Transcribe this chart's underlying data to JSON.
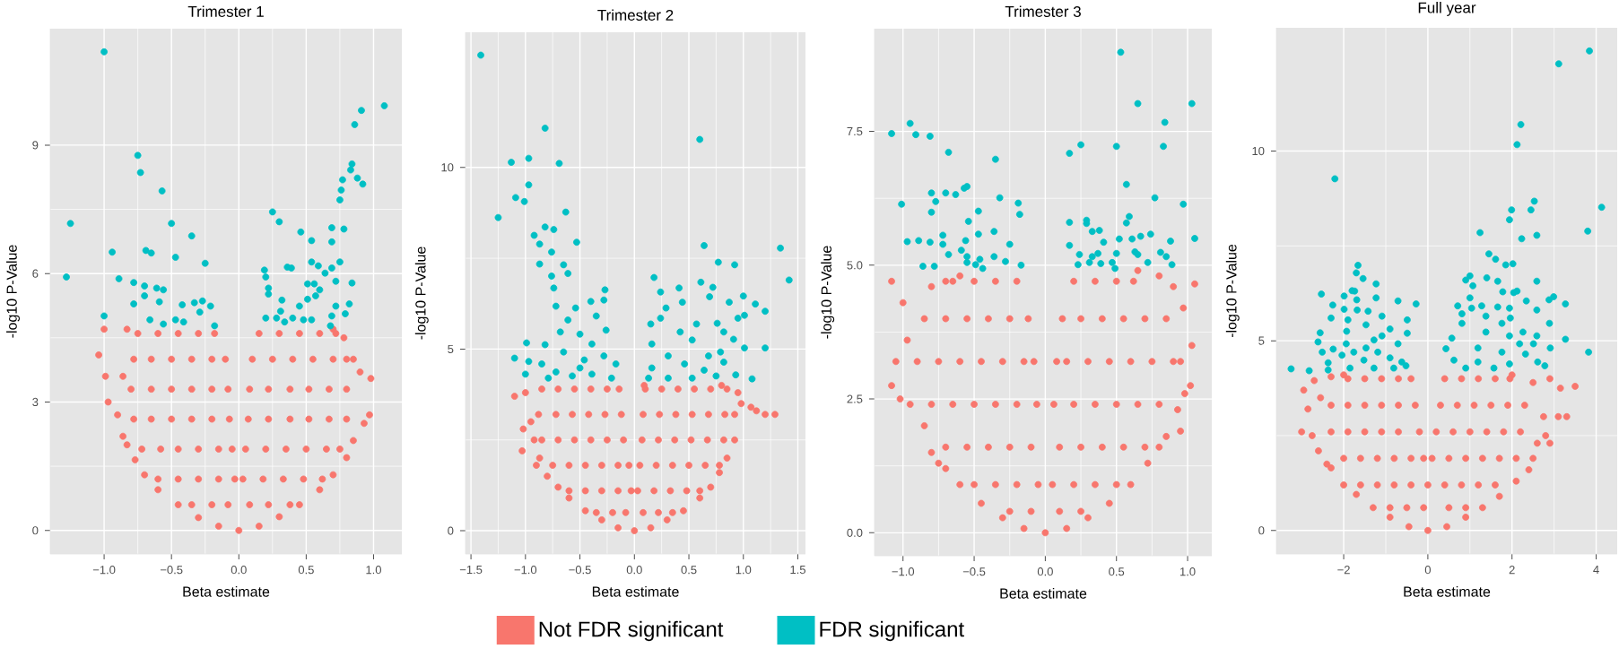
{
  "chart_data": [
    {
      "type": "scatter",
      "title": "Trimester 1",
      "xlabel": "Beta estimate",
      "ylabel": "-log10 P-Value",
      "xlim": [
        -1.4,
        1.21
      ],
      "ylim": [
        -0.55,
        11.72
      ],
      "xticks": [
        {
          "value": -1,
          "label": "−1.0"
        },
        {
          "value": -0.5,
          "label": "−0.5"
        },
        {
          "value": 0,
          "label": "0.0"
        },
        0.5,
        {
          "value": 1,
          "label": "1.0"
        }
      ],
      "yticks": [
        0,
        3,
        6,
        9
      ],
      "grid": true,
      "legend": "bottom",
      "series": [
        {
          "name": "Not FDR significant",
          "color": "#f8766d",
          "x": [
            -1.04,
            -1.0,
            -0.99,
            -0.97,
            -0.9,
            -0.86,
            -0.83,
            -0.86,
            -0.83,
            -0.77,
            -0.7,
            -0.6,
            -0.45,
            -0.3,
            -0.15,
            0,
            0.15,
            0.3,
            0.45,
            0.6,
            0.7,
            0.8,
            0.85,
            0.93,
            0.97,
            0.98,
            0.9,
            0.85,
            0.78,
            0.7,
            -0.75,
            -0.6,
            -0.45,
            -0.3,
            -0.18,
            -0.78,
            -0.65,
            -0.5,
            -0.35,
            -0.2,
            -0.1,
            -0.8,
            -0.65,
            -0.5,
            -0.35,
            -0.2,
            -0.08,
            -0.78,
            -0.65,
            -0.5,
            -0.35,
            -0.2,
            -0.07,
            -0.72,
            -0.58,
            -0.45,
            -0.3,
            -0.15,
            -0.05,
            -0.6,
            -0.45,
            -0.3,
            -0.15,
            -0.03,
            -0.35,
            -0.2,
            -0.08,
            0.15,
            0.3,
            0.45,
            0.6,
            0.72,
            0.1,
            0.25,
            0.4,
            0.55,
            0.7,
            0.8,
            0.08,
            0.22,
            0.38,
            0.52,
            0.67,
            0.8,
            0.07,
            0.22,
            0.38,
            0.52,
            0.67,
            0.8,
            0.05,
            0.2,
            0.35,
            0.5,
            0.65,
            0.75,
            0.03,
            0.18,
            0.33,
            0.48,
            0.62,
            0.08,
            0.22,
            0.38
          ],
          "values": [
            4.1,
            4.7,
            3.6,
            3.0,
            2.7,
            2.2,
            2.0,
            3.6,
            4.7,
            1.65,
            1.3,
            0.95,
            0.6,
            0.3,
            0.1,
            0,
            0.1,
            0.32,
            0.6,
            0.95,
            1.3,
            1.7,
            2.1,
            2.5,
            2.7,
            3.55,
            3.7,
            4.0,
            4.5,
            4.7,
            4.6,
            4.6,
            4.6,
            4.6,
            4.6,
            4.0,
            4.0,
            4.0,
            4.0,
            4.0,
            4.0,
            3.3,
            3.3,
            3.3,
            3.3,
            3.3,
            3.3,
            2.6,
            2.6,
            2.6,
            2.6,
            2.6,
            2.6,
            1.9,
            1.9,
            1.9,
            1.9,
            1.9,
            1.9,
            1.2,
            1.2,
            1.2,
            1.2,
            1.2,
            0.6,
            0.6,
            0.6,
            4.6,
            4.6,
            4.6,
            4.6,
            4.6,
            4.0,
            4.0,
            4.0,
            4.0,
            4.0,
            4.0,
            3.3,
            3.3,
            3.3,
            3.3,
            3.3,
            3.3,
            2.6,
            2.6,
            2.6,
            2.6,
            2.6,
            2.6,
            1.9,
            1.9,
            1.9,
            1.9,
            1.9,
            1.9,
            1.2,
            1.2,
            1.2,
            1.2,
            1.2,
            0.6,
            0.6,
            0.6
          ]
        },
        {
          "name": "FDR significant",
          "color": "#00bfc4",
          "x": [
            -1.0,
            -1.28,
            -1.25,
            -0.94,
            -0.89,
            -1.0,
            -0.75,
            -0.73,
            -0.57,
            -0.5,
            -0.35,
            -0.47,
            -0.25,
            -0.69,
            -0.65,
            -0.78,
            -0.7,
            -0.7,
            -0.61,
            -0.56,
            -0.59,
            -0.78,
            -0.66,
            -0.42,
            -0.33,
            -0.27,
            -0.21,
            -0.29,
            -0.47,
            -0.56,
            -0.18,
            -0.41,
            1.08,
            0.91,
            0.86,
            0.84,
            0.83,
            0.88,
            0.92,
            0.77,
            0.76,
            0.75,
            0.25,
            0.3,
            0.46,
            0.69,
            0.78,
            0.54,
            0.69,
            0.75,
            0.54,
            0.59,
            0.64,
            0.69,
            0.19,
            0.2,
            0.36,
            0.39,
            0.84,
            0.72,
            0.51,
            0.56,
            0.6,
            0.57,
            0.51,
            0.45,
            0.22,
            0.22,
            0.32,
            0.72,
            0.82,
            0.79,
            0.69,
            0.31,
            0.2,
            0.28,
            0.4,
            0.48,
            0.54,
            0.68,
            0.34
          ],
          "values": [
            11.18,
            5.92,
            7.17,
            6.5,
            5.88,
            5.01,
            8.76,
            8.36,
            7.93,
            7.17,
            6.88,
            6.38,
            6.24,
            6.54,
            6.48,
            5.79,
            5.71,
            5.48,
            5.66,
            5.62,
            5.34,
            5.29,
            4.92,
            5.27,
            5.32,
            5.36,
            5.24,
            5.1,
            4.92,
            4.82,
            4.78,
            4.87,
            9.92,
            9.81,
            9.48,
            8.56,
            8.42,
            8.23,
            8.09,
            8.19,
            7.95,
            7.72,
            7.44,
            7.21,
            6.97,
            7.07,
            7.04,
            6.77,
            6.74,
            6.27,
            6.27,
            6.18,
            6.01,
            6.13,
            6.08,
            5.92,
            6.15,
            6.13,
            5.78,
            5.82,
            5.76,
            5.76,
            5.62,
            5.48,
            5.4,
            5.24,
            5.66,
            5.52,
            5.38,
            5.24,
            5.29,
            5.06,
            5.01,
            5.12,
            4.96,
            4.96,
            4.96,
            4.92,
            4.92,
            4.78,
            4.87
          ]
        }
      ]
    },
    {
      "type": "scatter",
      "title": "Trimester 2",
      "xlabel": "Beta estimate",
      "ylabel": "-log10 P-Value",
      "xlim": [
        -1.55,
        1.57
      ],
      "ylim": [
        -0.64,
        13.72
      ],
      "xticks": [
        {
          "value": -1.5,
          "label": "−1.5"
        },
        {
          "value": -1,
          "label": "−1.0"
        },
        {
          "value": -0.5,
          "label": "−0.5"
        },
        {
          "value": 0,
          "label": "0.0"
        },
        0.5,
        {
          "value": 1,
          "label": "1.0"
        },
        1.5
      ],
      "yticks": [
        0,
        5,
        10
      ],
      "grid": true,
      "series": [
        {
          "color": "#f8766d",
          "x": [
            -1.1,
            -1.0,
            -1.02,
            -1.03,
            -0.95,
            -0.92,
            -0.9,
            -0.87,
            -0.8,
            -0.7,
            -0.6,
            -0.45,
            -0.3,
            -0.15,
            0,
            0.15,
            0.3,
            0.45,
            0.6,
            0.7,
            0.78,
            0.85,
            0.92,
            0.92,
            0.98,
            1.07,
            1.12,
            1.2,
            1.29,
            0.95,
            0.8,
            0.09,
            -0.85,
            -0.7,
            -0.55,
            -0.4,
            -0.25,
            -0.14,
            -0.88,
            -0.72,
            -0.57,
            -0.42,
            -0.27,
            -0.12,
            -0.85,
            -0.7,
            -0.55,
            -0.4,
            -0.25,
            -0.1,
            -0.75,
            -0.6,
            -0.45,
            -0.3,
            -0.15,
            -0.05,
            -0.6,
            -0.45,
            -0.3,
            -0.15,
            -0.03,
            -0.35,
            -0.2,
            -0.08,
            0.1,
            0.25,
            0.4,
            0.55,
            0.7,
            0.85,
            0.08,
            0.23,
            0.38,
            0.53,
            0.68,
            0.83,
            0.07,
            0.22,
            0.37,
            0.52,
            0.67,
            0.82,
            0.05,
            0.2,
            0.35,
            0.5,
            0.65,
            0.78,
            0.03,
            0.18,
            0.33,
            0.48,
            0.6,
            0.08,
            0.22,
            0.35
          ],
          "values": [
            3.7,
            3.8,
            2.8,
            2.2,
            3.0,
            2.5,
            1.8,
            2.0,
            1.5,
            1.2,
            0.9,
            0.55,
            0.3,
            0.08,
            0,
            0.08,
            0.3,
            0.55,
            0.9,
            1.2,
            1.6,
            2.0,
            2.5,
            3.2,
            3.5,
            3.4,
            3.3,
            3.2,
            3.2,
            3.8,
            4.0,
            4.0,
            3.9,
            3.9,
            3.9,
            3.9,
            3.9,
            3.9,
            3.2,
            3.2,
            3.2,
            3.2,
            3.2,
            3.2,
            2.5,
            2.5,
            2.5,
            2.5,
            2.5,
            2.5,
            1.8,
            1.8,
            1.8,
            1.8,
            1.8,
            1.8,
            1.1,
            1.1,
            1.1,
            1.1,
            1.1,
            0.5,
            0.5,
            0.5,
            3.9,
            3.9,
            3.9,
            3.9,
            3.9,
            3.9,
            3.2,
            3.2,
            3.2,
            3.2,
            3.2,
            3.2,
            2.5,
            2.5,
            2.5,
            2.5,
            2.5,
            2.5,
            1.8,
            1.8,
            1.8,
            1.8,
            1.8,
            1.8,
            1.1,
            1.1,
            1.1,
            1.1,
            1.1,
            0.5,
            0.5,
            0.5
          ]
        },
        {
          "color": "#00bfc4",
          "x": [
            -1.41,
            -1.25,
            -0.82,
            -1.13,
            -0.97,
            -0.69,
            -0.97,
            -1.09,
            -1.01,
            -0.63,
            -0.53,
            -0.82,
            -0.74,
            -0.92,
            -0.87,
            -0.76,
            -0.87,
            -0.65,
            -0.76,
            -0.61,
            -0.74,
            -0.27,
            -0.4,
            -0.28,
            -0.72,
            -0.54,
            -0.35,
            -0.61,
            -0.26,
            -0.68,
            -0.5,
            -0.99,
            -0.82,
            -0.39,
            -1.1,
            -0.97,
            -1.0,
            -0.85,
            -0.65,
            -0.46,
            -0.28,
            -0.17,
            -0.72,
            -0.57,
            -0.39,
            -0.21,
            -0.79,
            -0.5,
            0.6,
            0.64,
            1.34,
            1.42,
            0.77,
            0.92,
            0.18,
            0.41,
            0.61,
            0.72,
            0.24,
            0.69,
            1.0,
            0.44,
            0.87,
            1.11,
            1.2,
            0.29,
            1.01,
            0.95,
            0.24,
            0.57,
            0.76,
            0.15,
            0.42,
            0.82,
            0.91,
            0.16,
            0.53,
            1.01,
            1.2,
            0.79,
            0.82,
            1.08,
            0.93,
            0.31,
            0.16,
            0.46,
            0.64,
            0.13,
            0.31,
            0.53,
            0.75,
            0.68
          ],
          "values": [
            13.09,
            8.62,
            11.08,
            10.14,
            10.25,
            10.11,
            9.52,
            9.17,
            9.06,
            8.77,
            7.94,
            8.36,
            8.29,
            8.13,
            7.89,
            7.67,
            7.34,
            7.32,
            7.01,
            7.08,
            6.68,
            6.63,
            6.31,
            6.35,
            6.18,
            6.13,
            5.91,
            5.8,
            5.52,
            5.47,
            5.41,
            5.17,
            5.12,
            5.14,
            4.75,
            4.66,
            4.31,
            4.59,
            4.92,
            4.7,
            4.81,
            4.59,
            4.37,
            4.26,
            4.31,
            4.2,
            4.2,
            4.48,
            10.77,
            7.85,
            7.78,
            6.9,
            7.39,
            7.32,
            6.97,
            6.68,
            6.84,
            6.7,
            6.57,
            6.44,
            6.46,
            6.29,
            6.29,
            6.24,
            6.04,
            6.13,
            5.93,
            5.85,
            5.85,
            5.69,
            5.71,
            5.69,
            5.47,
            5.47,
            5.27,
            5.14,
            5.25,
            5.03,
            5.03,
            4.92,
            4.64,
            4.18,
            4.29,
            4.81,
            4.48,
            4.59,
            4.42,
            4.2,
            4.2,
            4.2,
            4.26,
            4.81
          ]
        }
      ]
    },
    {
      "type": "scatter",
      "title": "Trimester 3",
      "xlabel": "Beta estimate",
      "ylabel": "-log10 P-Value",
      "xlim": [
        -1.2,
        1.17
      ],
      "ylim": [
        -0.43,
        9.42
      ],
      "xticks": [
        {
          "value": -1,
          "label": "−1.0"
        },
        {
          "value": -0.5,
          "label": "−0.5"
        },
        {
          "value": 0,
          "label": "0.0"
        },
        0.5,
        {
          "value": 1,
          "label": "1.0"
        }
      ],
      "yticks": [
        {
          "value": 0,
          "label": "0.0"
        },
        2.5,
        {
          "value": 5,
          "label": "5.0"
        },
        7.5
      ],
      "grid": true,
      "series": [
        {
          "color": "#f8766d",
          "x": [
            -1.08,
            -1.0,
            -0.97,
            -1.05,
            -1.08,
            -1.02,
            -0.95,
            -0.85,
            -0.8,
            -0.75,
            -0.7,
            -0.6,
            -0.45,
            -0.3,
            -0.15,
            0,
            -0.8,
            -0.7,
            -0.6,
            0.15,
            0.3,
            0.45,
            0.6,
            0.72,
            0.8,
            0.85,
            0.95,
            0.93,
            0.98,
            1.02,
            0.95,
            1.03,
            0.97,
            1.05,
            0.9,
            0.8,
            0.65,
            -0.65,
            -0.5,
            -0.35,
            -0.2,
            -0.85,
            -0.7,
            -0.55,
            -0.4,
            -0.25,
            -0.12,
            -0.9,
            -0.75,
            -0.6,
            -0.45,
            -0.3,
            -0.15,
            -0.08,
            -0.8,
            -0.65,
            -0.5,
            -0.35,
            -0.2,
            -0.06,
            -0.7,
            -0.55,
            -0.4,
            -0.25,
            -0.1,
            -0.5,
            -0.35,
            -0.2,
            -0.05,
            -0.25,
            -0.1,
            0.2,
            0.35,
            0.5,
            0.62,
            0.12,
            0.25,
            0.4,
            0.55,
            0.7,
            0.85,
            0.08,
            0.15,
            0.3,
            0.45,
            0.6,
            0.75,
            0.9,
            0.06,
            0.2,
            0.35,
            0.5,
            0.65,
            0.8,
            0.1,
            0.25,
            0.4,
            0.55,
            0.7,
            0.05,
            0.2,
            0.35,
            0.5,
            0.1,
            0.25
          ],
          "values": [
            4.7,
            4.3,
            3.6,
            3.2,
            2.75,
            2.5,
            2.4,
            2.0,
            1.5,
            1.3,
            1.2,
            0.9,
            0.55,
            0.28,
            0.08,
            0,
            4.6,
            4.7,
            4.8,
            0.08,
            0.28,
            0.55,
            0.9,
            1.3,
            1.6,
            1.8,
            1.9,
            2.3,
            2.6,
            2.75,
            3.2,
            3.5,
            4.2,
            4.65,
            4.6,
            4.8,
            4.9,
            4.7,
            4.7,
            4.7,
            4.7,
            4.0,
            4.0,
            4.0,
            4.0,
            4.0,
            4.0,
            3.2,
            3.2,
            3.2,
            3.2,
            3.2,
            3.2,
            3.2,
            2.4,
            2.4,
            2.4,
            2.4,
            2.4,
            2.4,
            1.6,
            1.6,
            1.6,
            1.6,
            1.6,
            0.9,
            0.9,
            0.9,
            0.9,
            0.4,
            0.4,
            4.7,
            4.7,
            4.7,
            4.7,
            4.0,
            4.0,
            4.0,
            4.0,
            4.0,
            4.0,
            3.2,
            3.2,
            3.2,
            3.2,
            3.2,
            3.2,
            3.2,
            2.4,
            2.4,
            2.4,
            2.4,
            2.4,
            2.4,
            1.6,
            1.6,
            1.6,
            1.6,
            1.6,
            0.9,
            0.9,
            0.9,
            0.9,
            0.4,
            0.4
          ]
        },
        {
          "color": "#00bfc4",
          "x": [
            -1.08,
            -0.95,
            -0.91,
            -0.81,
            -0.68,
            -0.35,
            -1.01,
            -0.8,
            -0.7,
            -0.63,
            -0.57,
            -0.55,
            -0.77,
            -0.8,
            -0.32,
            -0.19,
            -0.18,
            -0.47,
            -0.54,
            -0.97,
            -0.89,
            -0.81,
            -0.72,
            -0.72,
            -0.56,
            -0.47,
            -0.36,
            -0.25,
            -0.68,
            -0.59,
            -0.55,
            -0.36,
            -0.86,
            -0.78,
            -0.55,
            -0.49,
            -0.46,
            -0.28,
            -0.17,
            -0.44,
            0.53,
            0.65,
            1.03,
            0.84,
            0.83,
            0.25,
            0.17,
            0.5,
            0.57,
            0.77,
            0.97,
            0.59,
            0.57,
            0.17,
            0.29,
            0.29,
            0.33,
            0.38,
            0.67,
            0.74,
            1.05,
            0.52,
            0.61,
            0.88,
            0.17,
            0.41,
            0.24,
            0.33,
            0.37,
            0.5,
            0.63,
            0.65,
            0.81,
            0.85,
            0.72,
            0.89,
            0.23,
            0.31,
            0.39,
            0.47,
            0.49
          ],
          "values": [
            7.46,
            7.65,
            7.44,
            7.41,
            7.11,
            6.98,
            6.14,
            6.35,
            6.35,
            6.32,
            6.44,
            6.47,
            6.19,
            5.99,
            6.26,
            6.16,
            5.95,
            6.01,
            5.82,
            5.44,
            5.46,
            5.43,
            5.39,
            5.56,
            5.46,
            5.58,
            5.63,
            5.39,
            5.2,
            5.28,
            5.16,
            5.16,
            4.98,
            4.98,
            5.05,
            5.01,
            5.11,
            5.07,
            5.0,
            4.94,
            8.98,
            8.02,
            8.02,
            7.67,
            7.22,
            7.25,
            7.09,
            7.22,
            6.51,
            6.26,
            6.14,
            5.91,
            5.79,
            5.8,
            5.84,
            5.78,
            5.63,
            5.65,
            5.54,
            5.58,
            5.5,
            5.49,
            5.49,
            5.45,
            5.37,
            5.43,
            5.2,
            5.16,
            5.22,
            5.22,
            5.25,
            5.2,
            5.24,
            5.16,
            5.05,
            5.01,
            5.01,
            5.05,
            5.03,
            5.05,
            4.94
          ]
        }
      ]
    },
    {
      "type": "scatter",
      "title": "Full year",
      "xlabel": "Beta estimate",
      "ylabel": "-log10 P-Value",
      "xlim": [
        -3.6,
        4.5
      ],
      "ylim": [
        -0.62,
        13.25
      ],
      "xticks": [
        {
          "value": -2,
          "label": "−2"
        },
        0,
        2,
        4
      ],
      "yticks": [
        0,
        5,
        10
      ],
      "grid": true,
      "series": [
        {
          "color": "#f8766d",
          "x": [
            -2.95,
            -2.7,
            -2.55,
            -2.85,
            -3.0,
            -2.75,
            -2.6,
            -2.4,
            -2.3,
            -2.0,
            -1.7,
            -1.3,
            -0.9,
            -0.45,
            0,
            -2.3,
            -2.0,
            0.45,
            0.9,
            1.3,
            1.7,
            2.1,
            2.4,
            2.5,
            2.6,
            2.8,
            2.9,
            2.75,
            3.1,
            3.3,
            3.5,
            3.15,
            2.9,
            2.5,
            2.0,
            -1.9,
            -1.5,
            -1.1,
            -0.7,
            -0.4,
            -2.3,
            -1.9,
            -1.5,
            -1.1,
            -0.7,
            -0.3,
            -2.3,
            -1.9,
            -1.5,
            -1.1,
            -0.7,
            -0.2,
            -2.0,
            -1.6,
            -1.2,
            -0.8,
            -0.4,
            -0.1,
            -1.6,
            -1.2,
            -0.8,
            -0.4,
            0.0,
            -0.9,
            -0.5,
            -0.1,
            0.4,
            0.8,
            1.2,
            1.6,
            1.95,
            0.3,
            0.7,
            1.1,
            1.5,
            1.9,
            2.3,
            0.2,
            0.6,
            1.0,
            1.4,
            1.8,
            2.2,
            0.1,
            0.5,
            0.9,
            1.3,
            1.7,
            2.1,
            0.4,
            0.8,
            1.2,
            1.6,
            0.5,
            0.9
          ],
          "values": [
            3.7,
            3.95,
            3.5,
            3.2,
            2.6,
            2.5,
            2.1,
            1.75,
            1.65,
            1.2,
            0.95,
            0.6,
            0.35,
            0.1,
            0,
            4.05,
            4.1,
            0.1,
            0.35,
            0.6,
            0.9,
            1.3,
            1.6,
            1.9,
            2.3,
            2.5,
            2.3,
            3.0,
            3.0,
            3.0,
            3.8,
            3.75,
            4.0,
            3.9,
            4.1,
            4.0,
            4.0,
            4.0,
            4.0,
            4.0,
            3.3,
            3.3,
            3.3,
            3.3,
            3.3,
            3.3,
            2.6,
            2.6,
            2.6,
            2.6,
            2.6,
            2.6,
            1.9,
            1.9,
            1.9,
            1.9,
            1.9,
            1.9,
            1.2,
            1.2,
            1.2,
            1.2,
            1.2,
            0.6,
            0.6,
            0.6,
            4.0,
            4.0,
            4.0,
            4.0,
            4.0,
            3.3,
            3.3,
            3.3,
            3.3,
            3.3,
            3.3,
            2.6,
            2.6,
            2.6,
            2.6,
            2.6,
            2.6,
            1.9,
            1.9,
            1.9,
            1.9,
            1.9,
            1.9,
            1.2,
            1.2,
            1.2,
            1.2,
            0.6,
            0.6
          ]
        },
        {
          "color": "#00bfc4",
          "x": [
            -2.21,
            3.84,
            3.11,
            2.21,
            2.12,
            4.13,
            2.53,
            2.45,
            1.99,
            1.94,
            3.8,
            2.59,
            2.23,
            1.24,
            1.45,
            1.61,
            1.85,
            2.02,
            2.59,
            1.0,
            0.9,
            1.4,
            1.66,
            1.07,
            1.78,
            2.04,
            2.12,
            2.99,
            2.88,
            3.27,
            2.34,
            1.0,
            0.71,
            1.04,
            1.28,
            1.66,
            1.94,
            2.59,
            0.81,
            1.38,
            1.96,
            2.89,
            0.81,
            1.76,
            2.26,
            2.59,
            3.27,
            0.57,
            1.38,
            1.94,
            2.18,
            2.51,
            2.91,
            3.82,
            0.43,
            1.19,
            1.76,
            2.32,
            2.61,
            2.78,
            0.62,
            1.19,
            1.94,
            0.9,
            1.57,
            -1.66,
            -1.7,
            -1.54,
            -2.53,
            -1.23,
            -1.99,
            -1.74,
            -1.8,
            -1.23,
            -0.71,
            -0.28,
            -2.26,
            -1.69,
            -1.99,
            -1.68,
            -1.42,
            -2.3,
            -1.09,
            -1.9,
            -1.47,
            -0.49,
            -2.56,
            -1.93,
            -0.9,
            -0.49,
            -2.61,
            -2.51,
            -2.25,
            -1.94,
            -1.28,
            -1.09,
            -0.71,
            -3.25,
            -2.82,
            -2.37,
            -2.37,
            -2.04,
            -1.76,
            -1.47,
            -1.19,
            -1.52,
            -0.9,
            -0.62,
            -1.85,
            -1.28,
            -0.81,
            -0.52
          ],
          "values": [
            9.27,
            12.64,
            12.3,
            10.7,
            10.17,
            8.52,
            8.68,
            8.45,
            8.45,
            8.19,
            7.89,
            7.78,
            7.69,
            7.85,
            7.29,
            7.15,
            7.0,
            7.03,
            6.57,
            6.71,
            6.6,
            6.66,
            6.57,
            6.45,
            6.29,
            6.27,
            6.31,
            6.16,
            6.08,
            5.97,
            6.05,
            6.13,
            5.92,
            5.86,
            5.92,
            5.89,
            5.86,
            5.81,
            5.71,
            5.65,
            5.6,
            5.46,
            5.46,
            5.46,
            5.23,
            5.13,
            5.04,
            5.07,
            5.23,
            5.13,
            4.92,
            4.92,
            4.81,
            4.7,
            4.79,
            4.81,
            4.7,
            4.65,
            4.44,
            4.34,
            4.49,
            4.44,
            4.39,
            4.28,
            4.28,
            6.99,
            6.79,
            6.64,
            6.23,
            6.5,
            6.18,
            6.31,
            6.32,
            6.13,
            6.05,
            5.97,
            5.94,
            6.08,
            5.83,
            5.81,
            5.78,
            5.6,
            5.65,
            5.55,
            5.42,
            5.55,
            5.21,
            5.25,
            5.31,
            5.2,
            4.97,
            4.7,
            4.78,
            4.92,
            5.02,
            5.13,
            4.92,
            4.26,
            4.21,
            4.42,
            4.23,
            4.62,
            4.7,
            4.81,
            4.7,
            4.49,
            4.55,
            4.44,
            4.28,
            4.28,
            4.28,
            4.34
          ]
        }
      ]
    }
  ]
}
